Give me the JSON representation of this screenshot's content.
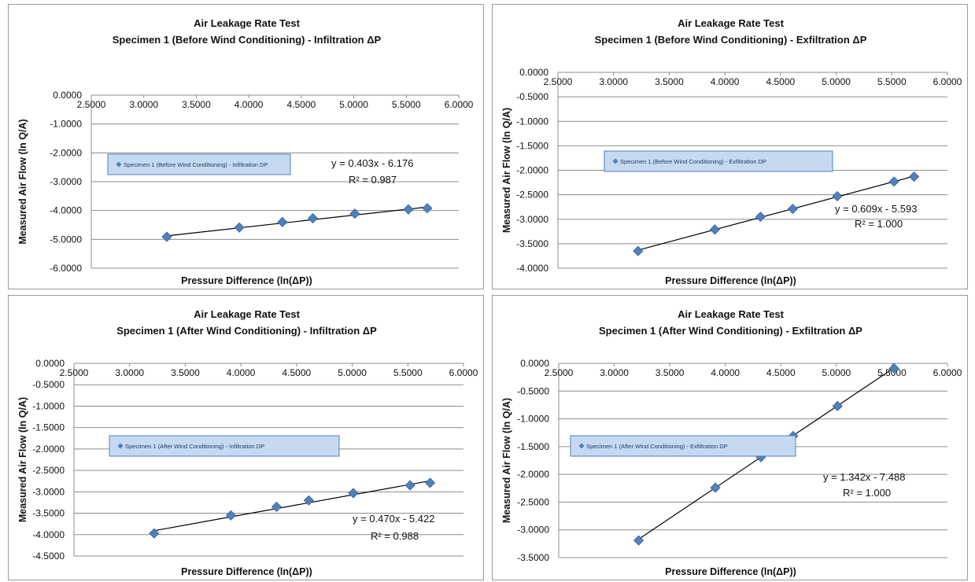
{
  "chart_data": [
    {
      "type": "scatter",
      "title": "Air Leakage Rate Test",
      "subtitle": "Specimen 1 (Before Wind Conditioning) - Infiltration ΔP",
      "xlabel": "Pressure Difference (ln(ΔP))",
      "ylabel": "Measured Air Flow (ln Q/A)",
      "xlim": [
        2.5,
        6.0
      ],
      "ylim": [
        -6.0,
        0.0
      ],
      "xticks": [
        "2.5000",
        "3.0000",
        "3.5000",
        "4.0000",
        "4.5000",
        "5.0000",
        "5.5000",
        "6.0000"
      ],
      "yticks": [
        "0.0000",
        "-1.0000",
        "-2.0000",
        "-3.0000",
        "-4.0000",
        "-5.0000",
        "-6.0000"
      ],
      "grid": "horizontal",
      "x": [
        3.22,
        3.91,
        4.32,
        4.61,
        5.01,
        5.52,
        5.7
      ],
      "y": [
        -4.91,
        -4.59,
        -4.4,
        -4.27,
        -4.11,
        -3.96,
        -3.92
      ],
      "legend": "Specimen 1 (Before Wind Conditioning) - Infiltration DP",
      "legend_position": "middle-left",
      "trendline": {
        "slope": 0.403,
        "intercept": -6.176
      },
      "equation": "y = 0.403x - 6.176",
      "r2": "R² = 0.987",
      "marker_color": "#4f81bd"
    },
    {
      "type": "scatter",
      "title": "Air Leakage Rate Test",
      "subtitle": "Specimen 1 (Before Wind Conditioning) - Exfiltration ΔP",
      "xlabel": "Pressure Difference (ln(ΔP))",
      "ylabel": "Measured Air Flow (ln Q/A)",
      "xlim": [
        2.5,
        6.0
      ],
      "ylim": [
        -4.0,
        0.0
      ],
      "xticks": [
        "2.5000",
        "3.0000",
        "3.5000",
        "4.0000",
        "4.5000",
        "5.0000",
        "5.5000",
        "6.0000"
      ],
      "yticks": [
        "0.0000",
        "-0.5000",
        "-1.0000",
        "-1.5000",
        "-2.0000",
        "-2.5000",
        "-3.0000",
        "-3.5000",
        "-4.0000"
      ],
      "grid": "horizontal",
      "x": [
        3.22,
        3.91,
        4.32,
        4.61,
        5.01,
        5.52,
        5.7
      ],
      "y": [
        -3.65,
        -3.21,
        -2.95,
        -2.79,
        -2.53,
        -2.23,
        -2.13
      ],
      "legend": "Specimen 1 (Before Wind Conditioning) - Exfiltration DP",
      "legend_position": "middle-left",
      "trendline": {
        "slope": 0.609,
        "intercept": -5.593
      },
      "equation": "y = 0.609x - 5.593",
      "r2": "R² = 1.000",
      "marker_color": "#4f81bd"
    },
    {
      "type": "scatter",
      "title": "Air Leakage Rate Test",
      "subtitle": "Specimen 1 (After Wind Conditioning) - Infiltration ΔP",
      "xlabel": "Pressure Difference (ln(ΔP))",
      "ylabel": "Measured Air Flow (ln Q/A)",
      "xlim": [
        2.5,
        6.0
      ],
      "ylim": [
        -4.5,
        0.0
      ],
      "xticks": [
        "2.5000",
        "3.0000",
        "3.5000",
        "4.0000",
        "4.5000",
        "5.0000",
        "5.5000",
        "6.0000"
      ],
      "yticks": [
        "0.0000",
        "-0.5000",
        "-1.0000",
        "-1.5000",
        "-2.0000",
        "-2.5000",
        "-3.0000",
        "-3.5000",
        "-4.0000",
        "-4.5000"
      ],
      "grid": "horizontal",
      "x": [
        3.22,
        3.91,
        4.32,
        4.61,
        5.01,
        5.52,
        5.7
      ],
      "y": [
        -3.97,
        -3.55,
        -3.35,
        -3.2,
        -3.03,
        -2.85,
        -2.79
      ],
      "legend": "Specimen 1 (After Wind Conditioning) - Infiltration DP",
      "legend_position": "middle-left",
      "trendline": {
        "slope": 0.47,
        "intercept": -5.422
      },
      "equation": "y = 0.470x - 5.422",
      "r2": "R² = 0.988",
      "marker_color": "#4f81bd"
    },
    {
      "type": "scatter",
      "title": "Air Leakage Rate Test",
      "subtitle": "Specimen 1 (After Wind Conditioning) - Exfiltration ΔP",
      "xlabel": "Pressure Difference (ln(ΔP))",
      "ylabel": "Measured Air Flow (ln Q/A)",
      "xlim": [
        2.5,
        6.0
      ],
      "ylim": [
        -3.5,
        0.0
      ],
      "xticks": [
        "2.5000",
        "3.0000",
        "3.5000",
        "4.0000",
        "4.5000",
        "5.0000",
        "5.5000",
        "6.0000"
      ],
      "yticks": [
        "0.0000",
        "-0.5000",
        "-1.0000",
        "-1.5000",
        "-2.0000",
        "-2.5000",
        "-3.0000",
        "-3.5000"
      ],
      "grid": "horizontal",
      "x": [
        3.22,
        3.91,
        4.32,
        4.61,
        5.01,
        5.52
      ],
      "y": [
        -3.19,
        -2.24,
        -1.69,
        -1.31,
        -0.77,
        -0.09
      ],
      "legend": "Specimen 1 (After Wind Conditioning) - Exfiltration DP",
      "legend_position": "middle-left",
      "trendline": {
        "slope": 1.342,
        "intercept": -7.488
      },
      "equation": "y = 1.342x - 7.488",
      "r2": "R² = 1.000",
      "marker_color": "#4f81bd"
    }
  ]
}
